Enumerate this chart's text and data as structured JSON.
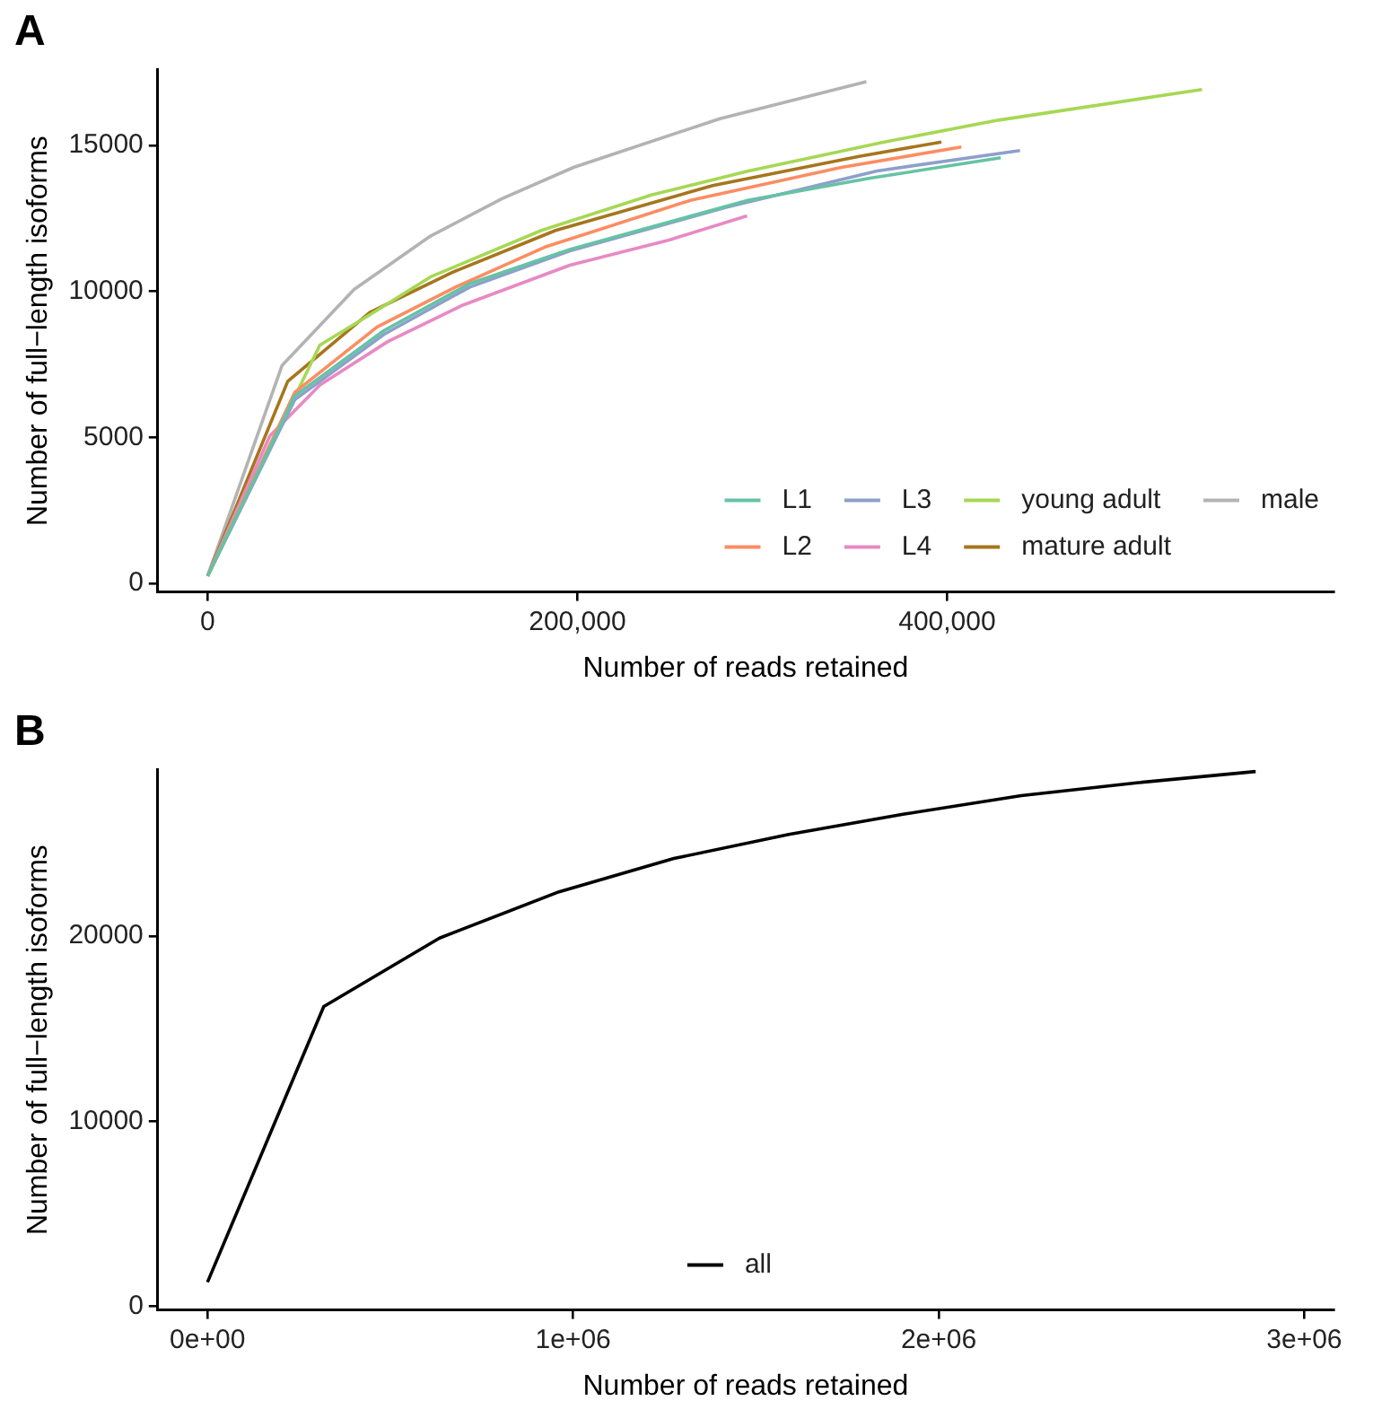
{
  "chart_data": [
    {
      "type": "line",
      "title": "A",
      "xlabel": "Number of reads retained",
      "ylabel": "Number of full−length isoforms",
      "xlim": [
        -27000,
        609000
      ],
      "ylim": [
        -300,
        17600
      ],
      "xticks": [
        0,
        {
          "value": 200000,
          "label": "200,000"
        },
        {
          "value": 400000,
          "label": "400,000"
        }
      ],
      "yticks": [
        0,
        5000,
        10000,
        15000
      ],
      "grid": false,
      "legend": "bottom right",
      "series": [
        {
          "name": "L1",
          "color": "#66c2a5",
          "x": [
            0,
            47100,
            95400,
            141800,
            195900,
            292600,
            358300,
            429000
          ],
          "values": [
            250,
            6420,
            8660,
            10270,
            11440,
            13130,
            13880,
            14580
          ]
        },
        {
          "name": "L2",
          "color": "#fc8d62",
          "x": [
            0,
            47100,
            91600,
            134100,
            182400,
            261600,
            342800,
            407700
          ],
          "values": [
            250,
            6540,
            8780,
            10150,
            11520,
            13130,
            14250,
            14950
          ]
        },
        {
          "name": "L3",
          "color": "#8da0cb",
          "x": [
            0,
            47100,
            95400,
            141800,
            195900,
            280900,
            362100,
            439400
          ],
          "values": [
            250,
            6290,
            8530,
            10150,
            11390,
            12890,
            14130,
            14830
          ]
        },
        {
          "name": "L4",
          "color": "#e78ac3",
          "x": [
            0,
            33600,
            60700,
            97400,
            138000,
            195900,
            250000,
            291800
          ],
          "values": [
            250,
            5050,
            6790,
            8280,
            9530,
            10900,
            11770,
            12590
          ]
        },
        {
          "name": "young adult",
          "color": "#a6d854",
          "x": [
            0,
            60700,
            87700,
            120600,
            180500,
            240400,
            292600,
            366000,
            427800,
            537900
          ],
          "values": [
            250,
            8160,
            9200,
            10500,
            12090,
            13310,
            14130,
            15120,
            15870,
            16920
          ]
        },
        {
          "name": "mature adult",
          "color": "#a6761d",
          "x": [
            0,
            43300,
            87700,
            132200,
            188200,
            273200,
            352400,
            396900
          ],
          "values": [
            250,
            6920,
            9280,
            10650,
            12090,
            13630,
            14630,
            15120
          ]
        },
        {
          "name": "male",
          "color": "#b3b3b3",
          "x": [
            0,
            40200,
            79200,
            119800,
            159200,
            197900,
            277100,
            356300
          ],
          "values": [
            250,
            7460,
            10070,
            11870,
            13180,
            14250,
            15920,
            17190
          ]
        }
      ]
    },
    {
      "type": "line",
      "title": "B",
      "xlabel": "Number of reads retained",
      "ylabel": "Number of full−length isoforms",
      "xlim": [
        -136000,
        3080000
      ],
      "ylim": [
        -200,
        29000
      ],
      "xticks": [
        {
          "value": 0,
          "label": "0e+00"
        },
        {
          "value": 1000000,
          "label": "1e+06"
        },
        {
          "value": 2000000,
          "label": "2e+06"
        },
        {
          "value": 3000000,
          "label": "3e+06"
        }
      ],
      "yticks": [
        0,
        10000,
        20000
      ],
      "grid": false,
      "legend": "bottom",
      "series": [
        {
          "name": "all",
          "color": "#000000",
          "x": [
            0,
            318000,
            634600,
            961500,
            1275600,
            1589700,
            1906000,
            2226000,
            2547000,
            2867000
          ],
          "values": [
            1300,
            16200,
            19900,
            22400,
            24200,
            25500,
            26600,
            27600,
            28300,
            28900
          ]
        }
      ]
    }
  ]
}
